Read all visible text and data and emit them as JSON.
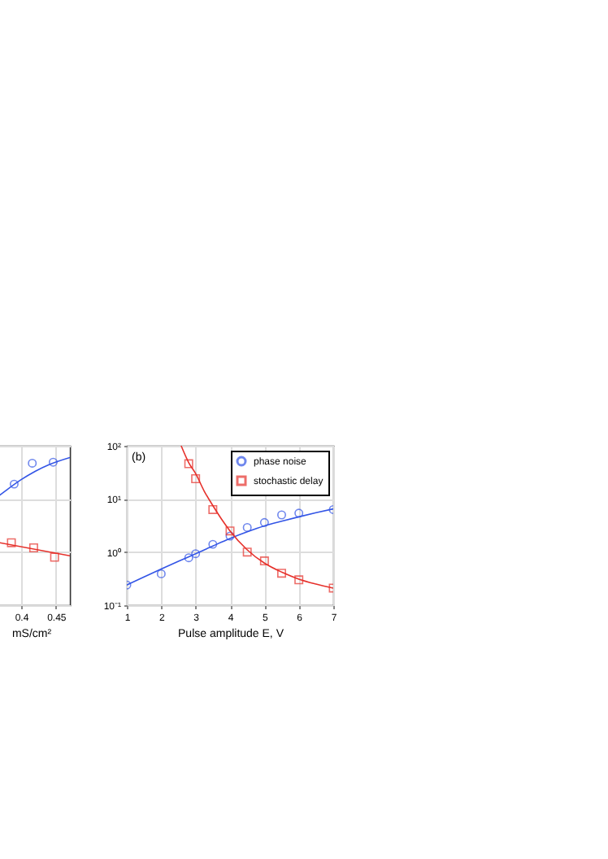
{
  "chart_data": [
    {
      "type": "scatter",
      "xlabel": "mS/cm²",
      "xlim": [
        0.358,
        0.47
      ],
      "xticks": [
        {
          "value": 0.4,
          "label": "0.4"
        },
        0.45
      ],
      "ylim": [
        0.1,
        100
      ],
      "yticks": [
        0.1,
        1,
        10,
        100
      ],
      "log": "y",
      "grid": true,
      "tick_labels": "x",
      "series": [
        {
          "type": "scatter",
          "marker": "circle",
          "color": "#3355e6",
          "x": [
            0.39,
            0.416,
            0.446
          ],
          "values": [
            19,
            47,
            49
          ]
        },
        {
          "type": "scatter",
          "marker": "square",
          "color": "#e6302a",
          "x": [
            0.386,
            0.418,
            0.448
          ],
          "values": [
            1.5,
            1.2,
            0.8
          ]
        },
        {
          "type": "line",
          "color": "#3355e6",
          "x": [
            0.358,
            0.38,
            0.4,
            0.42,
            0.44,
            0.47
          ],
          "values": [
            9,
            15,
            23,
            33,
            44,
            60
          ]
        },
        {
          "type": "line",
          "color": "#e6302a",
          "x": [
            0.358,
            0.47
          ],
          "values": [
            1.6,
            0.85
          ]
        }
      ]
    },
    {
      "type": "scatter",
      "xlabel": "Pulse amplitude E, V",
      "xlim": [
        1,
        7
      ],
      "xticks": [
        1,
        2,
        3,
        4,
        5,
        6,
        7
      ],
      "ylim": [
        0.1,
        100
      ],
      "yticks": [
        {
          "value": 0.1,
          "label": "10⁻¹"
        },
        {
          "value": 1,
          "label": "10⁰"
        },
        {
          "value": 10,
          "label": "10¹"
        },
        {
          "value": 100,
          "label": "10²"
        }
      ],
      "log": "y",
      "grid": true,
      "legend": "top right",
      "annotations": [
        "(b)"
      ],
      "series": [
        {
          "type": "scatter",
          "name": "phase noise",
          "marker": "circle",
          "color": "#3355e6",
          "x": [
            1,
            2,
            2.8,
            3,
            3.5,
            4,
            4.5,
            5,
            5.5,
            6,
            7
          ],
          "values": [
            0.24,
            0.39,
            0.78,
            0.93,
            1.4,
            2.0,
            2.9,
            3.6,
            5.0,
            5.4,
            6.3
          ]
        },
        {
          "type": "scatter",
          "name": "stochastic delay",
          "marker": "square",
          "color": "#e6302a",
          "x": [
            2.8,
            3,
            3.5,
            4,
            4.5,
            5,
            5.5,
            6,
            7
          ],
          "values": [
            46,
            24,
            6.3,
            2.5,
            1.0,
            0.68,
            0.4,
            0.3,
            0.21
          ]
        },
        {
          "type": "line",
          "color": "#3355e6",
          "x": [
            1,
            1.5,
            2,
            2.5,
            3,
            3.5,
            4,
            4.5,
            5,
            5.5,
            6,
            6.5,
            7
          ],
          "values": [
            0.24,
            0.34,
            0.48,
            0.67,
            0.93,
            1.3,
            1.8,
            2.4,
            3.1,
            3.8,
            4.6,
            5.5,
            6.5
          ]
        },
        {
          "type": "line",
          "color": "#e6302a",
          "x": [
            2.58,
            2.8,
            3,
            3.25,
            3.5,
            3.75,
            4,
            4.5,
            5,
            5.5,
            6,
            6.5,
            7
          ],
          "values": [
            100,
            48,
            30,
            14,
            7.5,
            4.2,
            2.5,
            1.1,
            0.62,
            0.42,
            0.31,
            0.25,
            0.21
          ]
        }
      ]
    }
  ]
}
